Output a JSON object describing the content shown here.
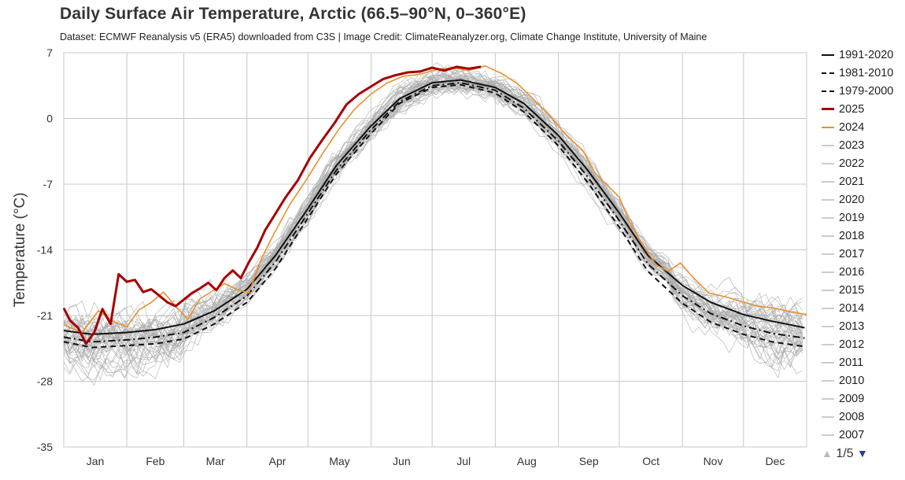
{
  "title": "Daily Surface Air Temperature, Arctic (66.5–90°N, 0–360°E)",
  "subtitle": "Dataset: ECMWF Reanalysis v5 (ERA5) downloaded from C3S | Image Credit: ClimateReanalyzer.org, Climate Change Institute, University of Maine",
  "colors": {
    "y2025": "#a50000",
    "y2024": "#e8912d",
    "climatology": "#111111",
    "past_years": "#aaaaaa",
    "grid": "#c8c8c8"
  },
  "chart_data": {
    "type": "line",
    "title": "Daily Surface Air Temperature, Arctic (66.5–90°N, 0–360°E)",
    "xlabel": "",
    "ylabel": "Temperature (°C)",
    "ylim": [
      -35,
      7
    ],
    "yticks": [
      7,
      0,
      -7,
      -14,
      -21,
      -28,
      -35
    ],
    "xlim": [
      1,
      366
    ],
    "month_labels": [
      "Jan",
      "Feb",
      "Mar",
      "Apr",
      "May",
      "Jun",
      "Jul",
      "Aug",
      "Sep",
      "Oct",
      "Nov",
      "Dec"
    ],
    "grid": true,
    "legend_position": "right",
    "x_units": "day of year",
    "series": [
      {
        "name": "1991-2020",
        "style": "solid",
        "x": [
          1,
          15,
          32,
          46,
          60,
          75,
          91,
          105,
          121,
          135,
          152,
          166,
          182,
          196,
          213,
          227,
          244,
          258,
          274,
          288,
          305,
          319,
          335,
          349,
          365
        ],
        "values": [
          -22.6,
          -23.0,
          -22.8,
          -22.5,
          -21.9,
          -20.5,
          -18.2,
          -14.6,
          -9.6,
          -5.0,
          -0.8,
          2.1,
          3.8,
          4.1,
          3.3,
          1.6,
          -1.8,
          -5.4,
          -10.1,
          -14.6,
          -17.8,
          -19.6,
          -20.9,
          -21.6,
          -22.3
        ]
      },
      {
        "name": "1981-2010",
        "style": "dashdot",
        "x": [
          1,
          15,
          32,
          46,
          60,
          75,
          91,
          105,
          121,
          135,
          152,
          166,
          182,
          196,
          213,
          227,
          244,
          258,
          274,
          288,
          305,
          319,
          335,
          349,
          365
        ],
        "values": [
          -23.3,
          -23.8,
          -23.6,
          -23.3,
          -22.8,
          -21.2,
          -18.9,
          -15.3,
          -10.1,
          -5.5,
          -1.2,
          1.8,
          3.5,
          3.8,
          3.0,
          1.1,
          -2.4,
          -6.1,
          -10.9,
          -15.5,
          -18.9,
          -20.8,
          -22.1,
          -22.9,
          -23.4
        ]
      },
      {
        "name": "1979-2000",
        "style": "dashed",
        "x": [
          1,
          15,
          32,
          46,
          60,
          75,
          91,
          105,
          121,
          135,
          152,
          166,
          182,
          196,
          213,
          227,
          244,
          258,
          274,
          288,
          305,
          319,
          335,
          349,
          365
        ],
        "values": [
          -23.8,
          -24.4,
          -24.2,
          -24.0,
          -23.5,
          -21.9,
          -19.6,
          -16.0,
          -10.6,
          -5.9,
          -1.6,
          1.6,
          3.3,
          3.6,
          2.7,
          0.7,
          -2.9,
          -6.7,
          -11.6,
          -16.3,
          -19.7,
          -21.7,
          -23.0,
          -23.8,
          -24.3
        ]
      },
      {
        "name": "2025",
        "style": "solid",
        "x": [
          1,
          4,
          8,
          12,
          16,
          20,
          24,
          28,
          32,
          36,
          40,
          44,
          48,
          52,
          56,
          60,
          64,
          68,
          72,
          76,
          80,
          84,
          88,
          92,
          96,
          100,
          104,
          110,
          116,
          122,
          128,
          134,
          140,
          146,
          152,
          158,
          164,
          170,
          176,
          182,
          188,
          194,
          200,
          206
        ],
        "values": [
          -20.2,
          -21.5,
          -22.3,
          -24.0,
          -22.8,
          -20.3,
          -21.9,
          -16.6,
          -17.4,
          -17.2,
          -18.5,
          -18.2,
          -18.9,
          -19.6,
          -20.0,
          -19.3,
          -18.6,
          -18.1,
          -17.5,
          -18.3,
          -17.0,
          -16.2,
          -17.0,
          -15.3,
          -13.8,
          -11.9,
          -10.5,
          -8.4,
          -6.6,
          -4.2,
          -2.3,
          -0.5,
          1.5,
          2.6,
          3.4,
          4.2,
          4.6,
          4.9,
          5.0,
          5.4,
          5.1,
          5.5,
          5.3,
          5.5
        ]
      },
      {
        "name": "2024",
        "style": "solid",
        "x": [
          1,
          10,
          18,
          26,
          32,
          38,
          44,
          50,
          56,
          62,
          68,
          74,
          80,
          86,
          92,
          98,
          104,
          112,
          120,
          128,
          136,
          144,
          152,
          160,
          168,
          176,
          184,
          192,
          200,
          208,
          216,
          224,
          232,
          240,
          248,
          256,
          262,
          268,
          274,
          280,
          286,
          292,
          298,
          304,
          310,
          318,
          326,
          334,
          342,
          350,
          358,
          366
        ],
        "values": [
          -22.0,
          -22.8,
          -20.5,
          -21.7,
          -22.2,
          -20.4,
          -19.6,
          -18.5,
          -20.0,
          -21.4,
          -19.2,
          -18.4,
          -17.6,
          -18.2,
          -18.6,
          -15.0,
          -12.4,
          -9.2,
          -6.6,
          -3.8,
          -1.2,
          1.0,
          2.6,
          3.8,
          4.5,
          4.7,
          5.2,
          5.4,
          5.1,
          5.6,
          4.8,
          3.7,
          2.0,
          0.2,
          -1.8,
          -3.4,
          -5.8,
          -7.1,
          -8.4,
          -11.5,
          -13.6,
          -15.6,
          -16.3,
          -15.4,
          -16.9,
          -18.6,
          -19.0,
          -19.5,
          -20.0,
          -20.2,
          -20.6,
          -20.9
        ]
      }
    ],
    "past_years_shown": [
      "2023",
      "2022",
      "2021",
      "2020",
      "2019",
      "2018",
      "2017",
      "2016",
      "2015",
      "2014",
      "2013",
      "2012",
      "2011",
      "2010",
      "2009",
      "2008",
      "2007"
    ]
  },
  "legend": {
    "items": [
      {
        "label": "1991-2020",
        "style": "solid",
        "color": "#111111"
      },
      {
        "label": "1981-2010",
        "style": "dashdot",
        "color": "#111111"
      },
      {
        "label": "1979-2000",
        "style": "dashed",
        "color": "#111111"
      },
      {
        "label": "2025",
        "style": "solid",
        "color": "#a50000"
      },
      {
        "label": "2024",
        "style": "solid",
        "color": "#e8912d"
      },
      {
        "label": "2023",
        "style": "solid",
        "color": "#cccccc"
      },
      {
        "label": "2022",
        "style": "solid",
        "color": "#cccccc"
      },
      {
        "label": "2021",
        "style": "solid",
        "color": "#cccccc"
      },
      {
        "label": "2020",
        "style": "solid",
        "color": "#cccccc"
      },
      {
        "label": "2019",
        "style": "solid",
        "color": "#cccccc"
      },
      {
        "label": "2018",
        "style": "solid",
        "color": "#cccccc"
      },
      {
        "label": "2017",
        "style": "solid",
        "color": "#cccccc"
      },
      {
        "label": "2016",
        "style": "solid",
        "color": "#cccccc"
      },
      {
        "label": "2015",
        "style": "solid",
        "color": "#cccccc"
      },
      {
        "label": "2014",
        "style": "solid",
        "color": "#cccccc"
      },
      {
        "label": "2013",
        "style": "solid",
        "color": "#cccccc"
      },
      {
        "label": "2012",
        "style": "solid",
        "color": "#cccccc"
      },
      {
        "label": "2011",
        "style": "solid",
        "color": "#cccccc"
      },
      {
        "label": "2010",
        "style": "solid",
        "color": "#cccccc"
      },
      {
        "label": "2009",
        "style": "solid",
        "color": "#cccccc"
      },
      {
        "label": "2008",
        "style": "solid",
        "color": "#cccccc"
      },
      {
        "label": "2007",
        "style": "solid",
        "color": "#cccccc"
      }
    ],
    "pager": {
      "text": "1/5",
      "up_icon": "triangle-up-icon",
      "down_icon": "triangle-down-icon"
    }
  }
}
